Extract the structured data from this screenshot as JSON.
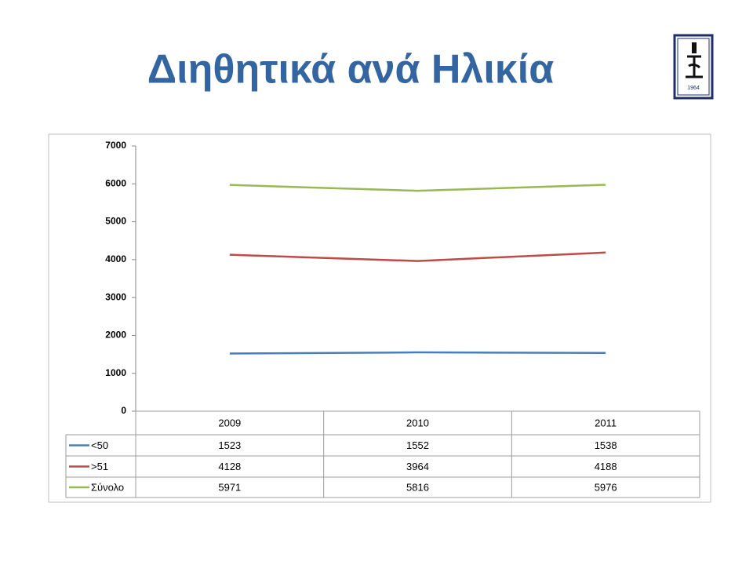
{
  "title": "Διηθητικά ανά Ηλικία",
  "logo": {
    "year": "1964"
  },
  "chart_data": {
    "type": "line",
    "categories": [
      "2009",
      "2010",
      "2011"
    ],
    "series": [
      {
        "name": "<50",
        "color": "#4a7ebb",
        "values": [
          1523,
          1552,
          1538
        ]
      },
      {
        "name": ">51",
        "color": "#be4b48",
        "values": [
          4128,
          3964,
          4188
        ]
      },
      {
        "name": "Σύνολο",
        "color": "#98b954",
        "values": [
          5971,
          5816,
          5976
        ]
      }
    ],
    "ylim": [
      0,
      7000
    ],
    "yticks": [
      0,
      1000,
      2000,
      3000,
      4000,
      5000,
      6000,
      7000
    ],
    "grid": false,
    "data_table": true
  }
}
